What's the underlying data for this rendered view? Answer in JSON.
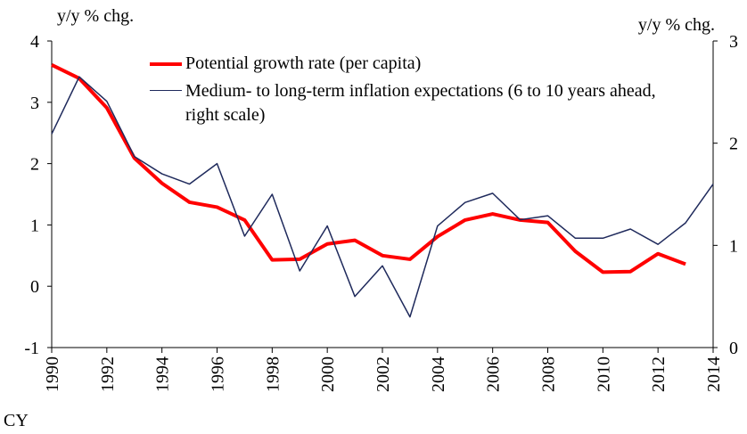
{
  "chart_data": {
    "type": "line",
    "y_label": "y/y % chg.",
    "y2_label": "y/y % chg.",
    "x_label": "CY",
    "x": [
      1990,
      1991,
      1992,
      1993,
      1994,
      1995,
      1996,
      1997,
      1998,
      1999,
      2000,
      2001,
      2002,
      2003,
      2004,
      2005,
      2006,
      2007,
      2008,
      2009,
      2010,
      2011,
      2012,
      2013,
      2014
    ],
    "series": [
      {
        "name": "Potential growth rate (per capita)",
        "color": "#ff0000",
        "width": 4,
        "values": [
          3.61,
          3.39,
          2.91,
          2.09,
          1.68,
          1.37,
          1.29,
          1.08,
          0.43,
          0.44,
          0.69,
          0.75,
          0.5,
          0.44,
          0.81,
          1.08,
          1.18,
          1.08,
          1.04,
          0.57,
          0.23,
          0.24,
          0.53,
          0.36,
          null
        ]
      },
      {
        "name": "Medium- to long-term inflation expectations (6 to 10 years ahead, right scale)",
        "color": "#1f2a5c",
        "width": 1.5,
        "axis": "y2",
        "values": [
          2.09,
          2.65,
          2.41,
          1.87,
          1.7,
          1.6,
          1.8,
          1.09,
          1.5,
          0.75,
          1.19,
          0.5,
          0.8,
          0.3,
          1.19,
          1.42,
          1.51,
          1.25,
          1.29,
          1.07,
          1.07,
          1.16,
          1.01,
          1.22,
          1.6
        ]
      }
    ],
    "xlim": [
      1990,
      2014
    ],
    "xticks": [
      1990,
      1992,
      1994,
      1996,
      1998,
      2000,
      2002,
      2004,
      2006,
      2008,
      2010,
      2012,
      2014
    ],
    "ylim": [
      -1,
      4
    ],
    "yticks": [
      -1,
      0,
      1,
      2,
      3,
      4
    ],
    "y2lim": [
      0,
      3
    ],
    "y2ticks": [
      0,
      1,
      2,
      3
    ],
    "grid": false
  }
}
